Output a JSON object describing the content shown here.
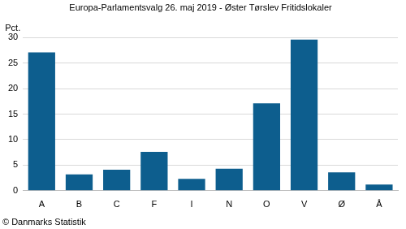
{
  "chart_data": {
    "type": "bar",
    "title": "Europa-Parlamentsvalg 26. maj 2019 - Øster Tørslev Fritidslokaler",
    "y_label": "Pct.",
    "annotations": [
      "© Danmarks Statistik"
    ],
    "categories": [
      "A",
      "B",
      "C",
      "F",
      "I",
      "N",
      "O",
      "V",
      "Ø",
      "Å"
    ],
    "values": [
      27.1,
      3.2,
      4.1,
      7.6,
      2.3,
      4.3,
      17.1,
      29.6,
      3.6,
      1.2
    ],
    "color": "#0d5e8e",
    "ylim": [
      0,
      30
    ],
    "yticks": [
      0,
      5,
      10,
      15,
      20,
      25,
      30
    ],
    "grid": true
  }
}
